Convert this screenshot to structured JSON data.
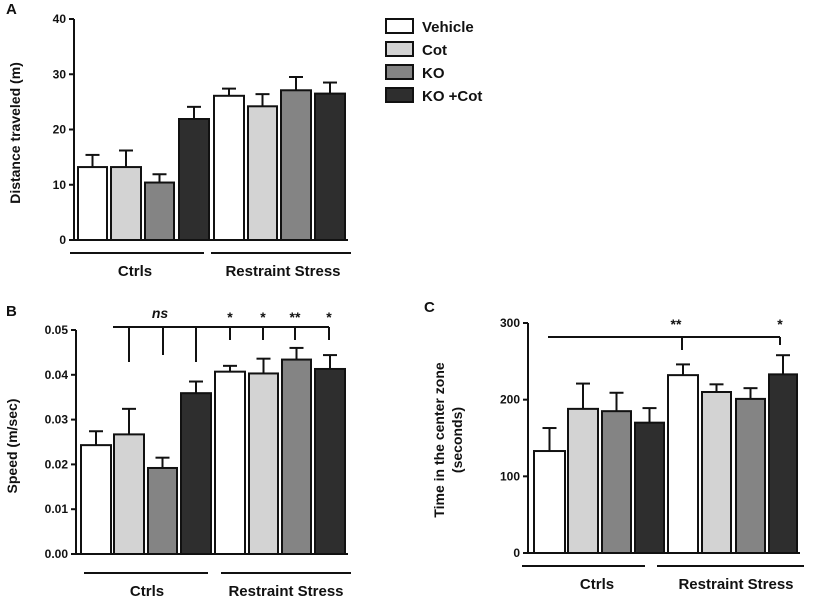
{
  "legend": [
    {
      "label": "Vehicle",
      "color": "#ffffff"
    },
    {
      "label": "Cot",
      "color": "#d3d3d3"
    },
    {
      "label": "KO",
      "color": "#848484"
    },
    {
      "label": "KO +Cot",
      "color": "#2e2e2e"
    }
  ],
  "chart_data": [
    {
      "panel": "A",
      "type": "bar",
      "ylabel": "Distance traveled (m)",
      "ylim": [
        0,
        40
      ],
      "yticks": [
        "0",
        "10",
        "20",
        "30",
        "40"
      ],
      "groups": [
        "Ctrls",
        "Restraint Stress"
      ],
      "series": [
        {
          "name": "Vehicle",
          "values": [
            13.2,
            26.1
          ],
          "errors": [
            2.2,
            1.3
          ]
        },
        {
          "name": "Cot",
          "values": [
            13.2,
            24.2
          ],
          "errors": [
            3.0,
            2.2
          ]
        },
        {
          "name": "KO",
          "values": [
            10.4,
            27.1
          ],
          "errors": [
            1.5,
            2.4
          ]
        },
        {
          "name": "KO +Cot",
          "values": [
            21.9,
            26.5
          ],
          "errors": [
            2.2,
            2.0
          ]
        }
      ],
      "significance": []
    },
    {
      "panel": "B",
      "type": "bar",
      "ylabel": "Speed (m/sec)",
      "ylim": [
        0,
        0.05
      ],
      "yticks": [
        "0.00",
        "0.01",
        "0.02",
        "0.03",
        "0.04",
        "0.05"
      ],
      "groups": [
        "Ctrls",
        "Restraint Stress"
      ],
      "series": [
        {
          "name": "Vehicle",
          "values": [
            0.0243,
            0.0407
          ],
          "errors": [
            0.0031,
            0.0013
          ]
        },
        {
          "name": "Cot",
          "values": [
            0.0267,
            0.0403
          ],
          "errors": [
            0.0057,
            0.0033
          ]
        },
        {
          "name": "KO",
          "values": [
            0.0192,
            0.0434
          ],
          "errors": [
            0.0023,
            0.0026
          ]
        },
        {
          "name": "KO +Cot",
          "values": [
            0.0359,
            0.0413
          ],
          "errors": [
            0.0026,
            0.0031
          ]
        }
      ],
      "significance": [
        "ns",
        "*",
        "*",
        "**",
        "*"
      ]
    },
    {
      "panel": "C",
      "type": "bar",
      "ylabel": "Time in the center zone",
      "ylabel2": "(seconds)",
      "ylim": [
        0,
        300
      ],
      "yticks": [
        "0",
        "100",
        "200",
        "300"
      ],
      "groups": [
        "Ctrls",
        "Restraint Stress"
      ],
      "series": [
        {
          "name": "Vehicle",
          "values": [
            133,
            232
          ],
          "errors": [
            30,
            14
          ]
        },
        {
          "name": "Cot",
          "values": [
            188,
            210
          ],
          "errors": [
            33,
            10
          ]
        },
        {
          "name": "KO",
          "values": [
            185,
            201
          ],
          "errors": [
            24,
            14
          ]
        },
        {
          "name": "KO +Cot",
          "values": [
            170,
            233
          ],
          "errors": [
            19,
            25
          ]
        }
      ],
      "significance": [
        "**",
        "*"
      ]
    }
  ]
}
